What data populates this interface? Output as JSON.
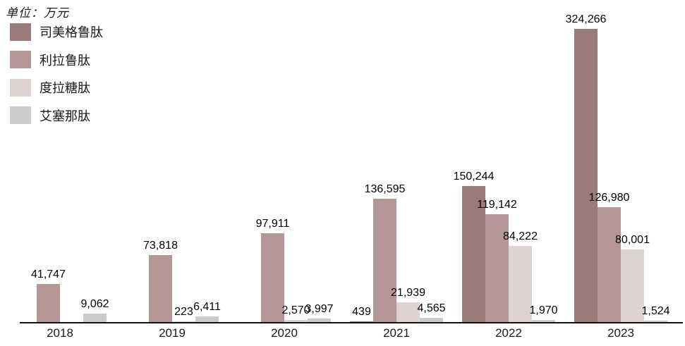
{
  "title": "单位：万元",
  "legend": [
    {
      "label": "司美格鲁肽",
      "color": "#9b7a7a"
    },
    {
      "label": "利拉鲁肽",
      "color": "#b49697"
    },
    {
      "label": "度拉糖肽",
      "color": "#ded3d2"
    },
    {
      "label": "艾塞那肽",
      "color": "#cccbcb"
    }
  ],
  "chart_data": {
    "type": "bar",
    "title": "",
    "unit_note": "单位：万元",
    "xlabel": "",
    "ylabel": "万元",
    "ylim": [
      0,
      360000
    ],
    "grid": false,
    "legend_position": "top-left",
    "value_labels": true,
    "categories": [
      "2018",
      "2019",
      "2020",
      "2021",
      "2022",
      "2023"
    ],
    "series": [
      {
        "name": "司美格鲁肽",
        "color": "#9b7a7a",
        "values": [
          null,
          null,
          null,
          439,
          150244,
          324266
        ],
        "labels": [
          null,
          null,
          null,
          "439",
          "150,244",
          "324,266"
        ]
      },
      {
        "name": "利拉鲁肽",
        "color": "#b49697",
        "values": [
          41747,
          73818,
          97911,
          136595,
          119142,
          126980
        ],
        "labels": [
          "41,747",
          "73,818",
          "97,911",
          "136,595",
          "119,142",
          "126,980"
        ]
      },
      {
        "name": "度拉糖肽",
        "color": "#ded3d2",
        "values": [
          null,
          223,
          2570,
          21939,
          84222,
          80001
        ],
        "labels": [
          null,
          "223",
          "2,570",
          "21,939",
          "84,222",
          "80,001"
        ]
      },
      {
        "name": "艾塞那肽",
        "color": "#cccbcb",
        "values": [
          9062,
          6411,
          3997,
          4565,
          1970,
          1524
        ],
        "labels": [
          "9,062",
          "6,411",
          "3,997",
          "4,565",
          "1,970",
          "1,524"
        ]
      }
    ]
  }
}
